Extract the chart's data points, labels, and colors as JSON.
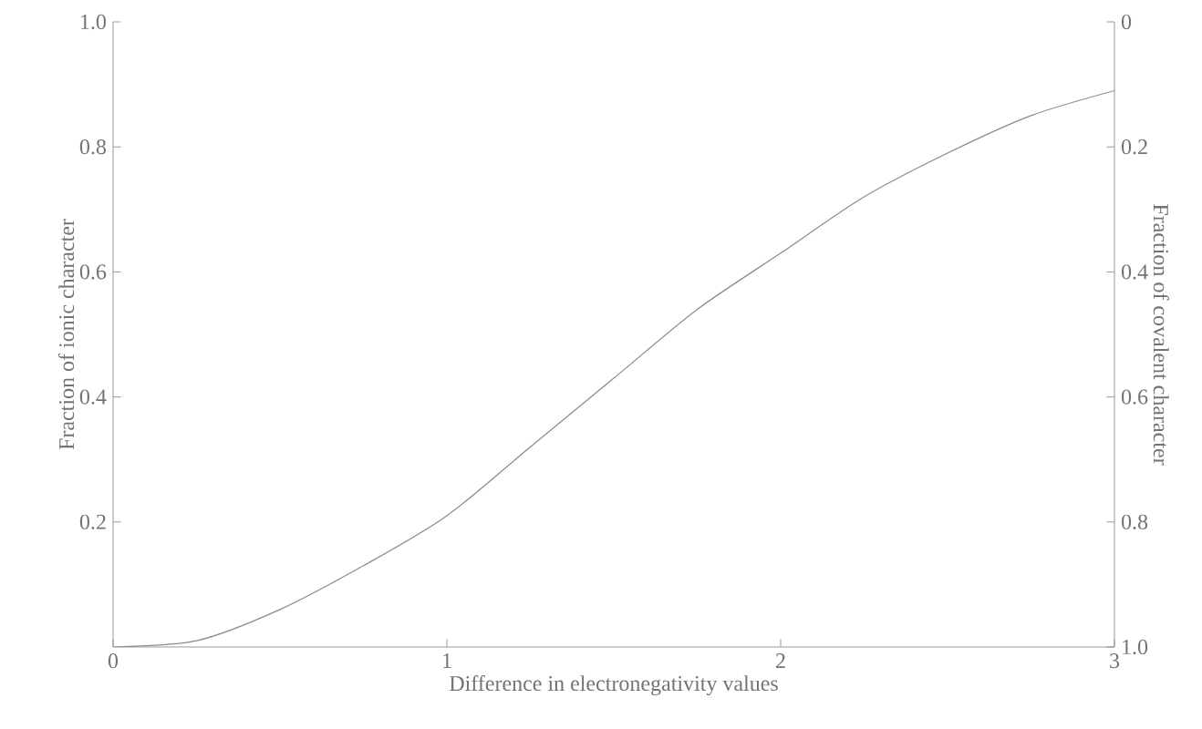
{
  "chart_data": {
    "type": "line",
    "xlabel": "Difference in electronegativity values",
    "ylabel": "Fraction of ionic character",
    "y2label": "Fraction of covalent character",
    "x": [
      0,
      0.25,
      0.5,
      0.75,
      1,
      1.25,
      1.5,
      1.75,
      2,
      2.25,
      2.5,
      2.75,
      3
    ],
    "series": [
      {
        "color": "#8a8a8a",
        "values": [
          0,
          0.01,
          0.06,
          0.13,
          0.21,
          0.32,
          0.43,
          0.54,
          0.63,
          0.72,
          0.79,
          0.85,
          0.89
        ]
      }
    ],
    "xlim": [
      0,
      3
    ],
    "xticks": [
      0,
      1,
      2,
      3
    ],
    "ylim": [
      0,
      1
    ],
    "yticks": [
      0.2,
      0.4,
      0.6,
      0.8,
      {
        "value": 1,
        "label": "1.0"
      }
    ],
    "y2lim": [
      1,
      0
    ],
    "y2ticks": [
      0,
      0.2,
      0.4,
      0.6,
      0.8,
      {
        "value": 1,
        "label": "1.0"
      }
    ],
    "marker": "none",
    "line_style": "solid"
  }
}
